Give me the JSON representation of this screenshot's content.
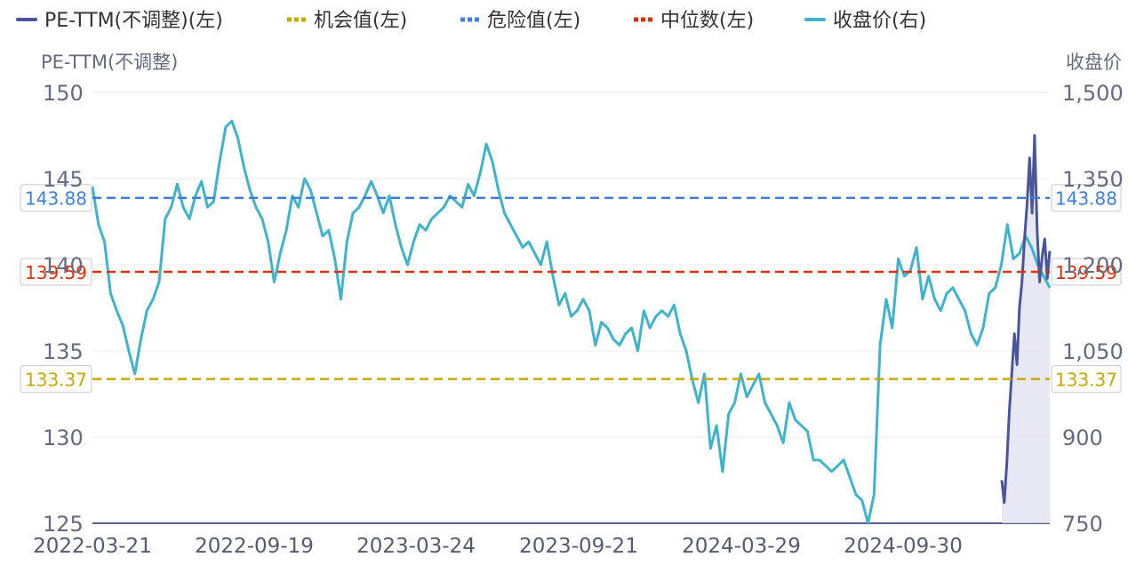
{
  "chart_data": {
    "type": "line",
    "legend_position": "top-left",
    "grid": true,
    "legend": [
      {
        "label": "PE-TTM(不调整)(左)",
        "style": "solid",
        "color": "#4a5699"
      },
      {
        "label": "机会值(左)",
        "style": "dotted",
        "color": "#c8a800"
      },
      {
        "label": "危险值(左)",
        "style": "dotted",
        "color": "#3d7fe0"
      },
      {
        "label": "中位数(左)",
        "style": "dotted",
        "color": "#e02d0a"
      },
      {
        "label": "收盘价(右)",
        "style": "solid",
        "color": "#3fb2cc"
      }
    ],
    "ylabel_left": "PE-TTM(不调整)",
    "ylabel_right": "收盘价",
    "y_left": {
      "min": 125,
      "max": 150,
      "ticks": [
        "150",
        "145",
        "140",
        "135",
        "130",
        "125"
      ]
    },
    "y_right": {
      "min": 750,
      "max": 1500,
      "ticks": [
        "1,500",
        "1,350",
        "1,200",
        "1,050",
        "900",
        "750"
      ]
    },
    "x_ticks": [
      "2022-03-21",
      "2022-09-19",
      "2023-03-24",
      "2023-09-21",
      "2024-03-29",
      "2024-09-30"
    ],
    "reference_lines": [
      {
        "name": "危险值",
        "value": 143.88,
        "label": "143.88",
        "color": "#3d7fe0"
      },
      {
        "name": "中位数",
        "value": 139.59,
        "label": "139.59",
        "color": "#e02d0a"
      },
      {
        "name": "机会值",
        "value": 133.37,
        "label": "133.37",
        "color": "#c8a800"
      }
    ],
    "series": [
      {
        "name": "收盘价(右)",
        "axis": "right",
        "color": "#3fb2cc",
        "values": [
          1336,
          1270,
          1240,
          1150,
          1120,
          1095,
          1050,
          1010,
          1070,
          1120,
          1140,
          1170,
          1280,
          1300,
          1340,
          1300,
          1280,
          1320,
          1345,
          1300,
          1310,
          1380,
          1440,
          1450,
          1420,
          1370,
          1330,
          1300,
          1280,
          1240,
          1170,
          1220,
          1260,
          1320,
          1300,
          1350,
          1330,
          1290,
          1250,
          1260,
          1210,
          1140,
          1240,
          1290,
          1300,
          1320,
          1345,
          1320,
          1290,
          1320,
          1270,
          1230,
          1200,
          1240,
          1270,
          1260,
          1280,
          1290,
          1300,
          1320,
          1310,
          1300,
          1340,
          1320,
          1360,
          1410,
          1380,
          1330,
          1290,
          1270,
          1250,
          1230,
          1240,
          1220,
          1200,
          1240,
          1180,
          1130,
          1150,
          1110,
          1120,
          1140,
          1120,
          1060,
          1100,
          1090,
          1070,
          1060,
          1080,
          1090,
          1050,
          1120,
          1090,
          1110,
          1120,
          1110,
          1130,
          1080,
          1050,
          1000,
          960,
          1010,
          880,
          920,
          840,
          940,
          960,
          1010,
          970,
          990,
          1010,
          960,
          940,
          920,
          890,
          960,
          930,
          920,
          910,
          860,
          860,
          850,
          840,
          850,
          860,
          830,
          800,
          790,
          750,
          800,
          1060,
          1140,
          1090,
          1210,
          1180,
          1190,
          1230,
          1140,
          1180,
          1140,
          1120,
          1150,
          1160,
          1140,
          1120,
          1080,
          1060,
          1090,
          1150,
          1160,
          1200,
          1270,
          1210,
          1220,
          1250,
          1230,
          1200,
          1180,
          1160
        ]
      },
      {
        "name": "PE-TTM(不调整)(左)",
        "axis": "left",
        "color": "#4a5699",
        "values": [
          127.5,
          126.2,
          128.5,
          131.5,
          133.8,
          136.0,
          134.2,
          137.5,
          139.0,
          141.5,
          143.5,
          146.2,
          143.0,
          147.5,
          142.0,
          139.0,
          140.5,
          141.5,
          139.2,
          140.8
        ]
      }
    ]
  }
}
